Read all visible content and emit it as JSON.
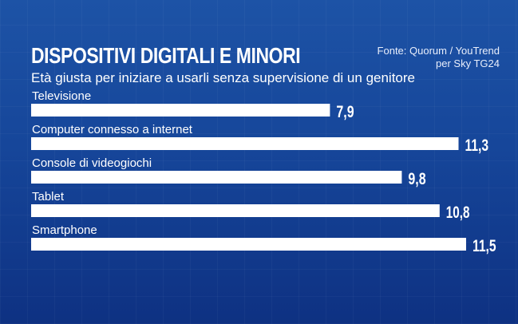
{
  "header": {
    "title": "Dispositivi digitali e minori",
    "subtitle": "Età giusta per iniziare a usarli senza supervisione di un genitore",
    "source_line1": "Fonte: Quorum / YouTrend",
    "source_line2": "per Sky TG24"
  },
  "colors": {
    "bar": "#ffffff",
    "text": "#ffffff"
  },
  "chart_data": {
    "type": "bar",
    "orientation": "horizontal",
    "title": "Dispositivi digitali e minori",
    "subtitle": "Età giusta per iniziare a usarli senza supervisione di un genitore",
    "categories": [
      "Televisione",
      "Computer connesso a internet",
      "Console di videogiochi",
      "Tablet",
      "Smartphone"
    ],
    "values": [
      7.9,
      11.3,
      9.8,
      10.8,
      11.5
    ],
    "value_labels": [
      "7,9",
      "11,3",
      "9,8",
      "10,8",
      "11,5"
    ],
    "xlabel": "",
    "ylabel": "",
    "xlim": [
      0,
      11.5
    ],
    "grid": false,
    "legend": "none"
  }
}
